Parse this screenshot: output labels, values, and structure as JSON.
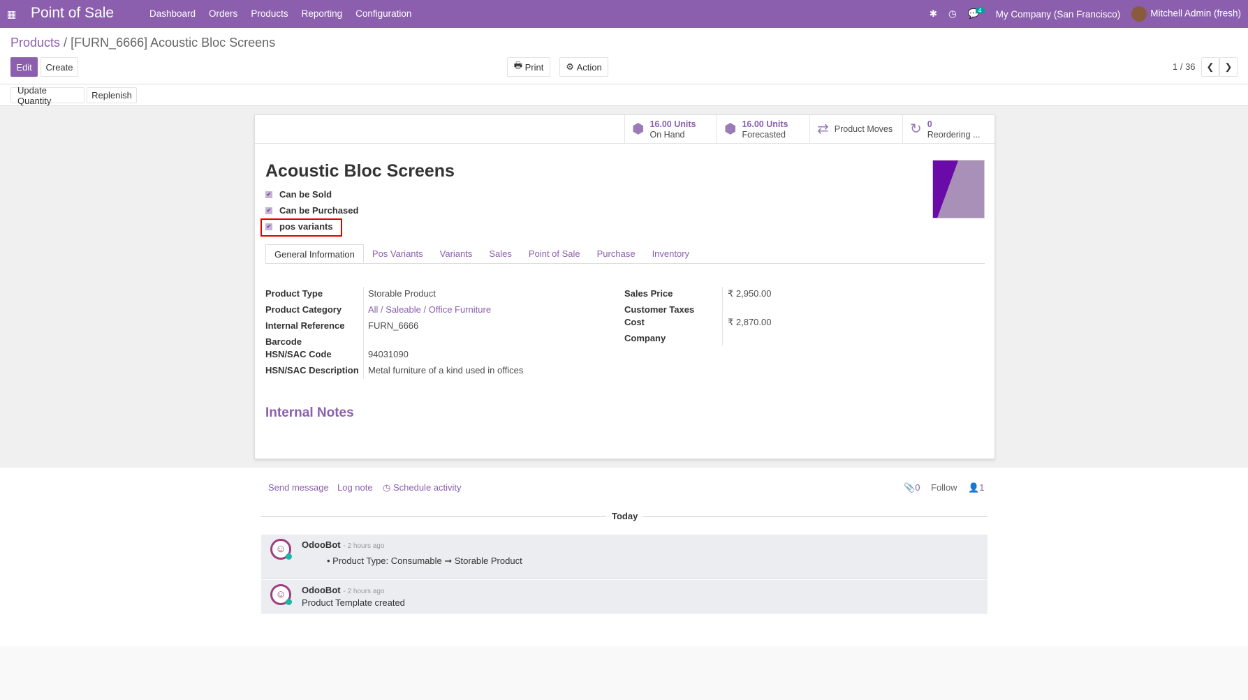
{
  "navbar": {
    "app_title": "Point of Sale",
    "menu": [
      "Dashboard",
      "Orders",
      "Products",
      "Reporting",
      "Configuration"
    ],
    "chat_count": "4",
    "company": "My Company (San Francisco)",
    "user": "Mitchell Admin (fresh)"
  },
  "breadcrumb": {
    "parent": "Products",
    "current": "[FURN_6666] Acoustic Bloc Screens"
  },
  "toolbar": {
    "edit": "Edit",
    "create": "Create",
    "print": "Print",
    "action": "Action",
    "pager": "1 / 36",
    "update_quantity": "Update Quantity",
    "replenish": "Replenish"
  },
  "stats": [
    {
      "value": "16.00 Units",
      "label": "On Hand",
      "icon": "cubes-icon"
    },
    {
      "value": "16.00 Units",
      "label": "Forecasted",
      "icon": "cubes-icon"
    },
    {
      "value": "",
      "label": "Product Moves",
      "icon": "exchange-icon"
    },
    {
      "value": "0",
      "label": "Reordering ...",
      "icon": "refresh-icon"
    }
  ],
  "product": {
    "name": "Acoustic Bloc Screens",
    "checks": [
      {
        "label": "Can be Sold",
        "checked": true
      },
      {
        "label": "Can be Purchased",
        "checked": true
      },
      {
        "label": "pos variants",
        "checked": true
      }
    ]
  },
  "tabs": [
    "General Information",
    "Pos Variants",
    "Variants",
    "Sales",
    "Point of Sale",
    "Purchase",
    "Inventory"
  ],
  "fields_left": [
    {
      "label": "Product Type",
      "value": "Storable Product"
    },
    {
      "label": "Product Category",
      "value": "All / Saleable / Office Furniture"
    },
    {
      "label": "Internal Reference",
      "value": "FURN_6666"
    },
    {
      "label": "Barcode",
      "value": ""
    },
    {
      "label": "HSN/SAC Code",
      "value": "94031090"
    },
    {
      "label": "HSN/SAC Description",
      "value": "Metal furniture of a kind used in offices"
    }
  ],
  "fields_right": [
    {
      "label": "Sales Price",
      "value": "₹ 2,950.00"
    },
    {
      "label": "Customer Taxes",
      "value": ""
    },
    {
      "label": "Cost",
      "value": "₹ 2,870.00"
    },
    {
      "label": "Company",
      "value": ""
    }
  ],
  "internal_notes": "Internal Notes",
  "chatter": {
    "send_message": "Send message",
    "log_note": "Log note",
    "schedule_activity": "Schedule activity",
    "attachments": "0",
    "follow": "Follow",
    "followers": "1",
    "today": "Today",
    "messages": [
      {
        "author": "OdooBot",
        "time": "- 2 hours ago",
        "body": "Product Type: Consumable ➞ Storable Product"
      },
      {
        "author": "OdooBot",
        "time": "- 2 hours ago",
        "body": "Product Template created"
      }
    ]
  },
  "colors": {
    "brand": "#8b5fad",
    "highlight": "#e00000"
  }
}
